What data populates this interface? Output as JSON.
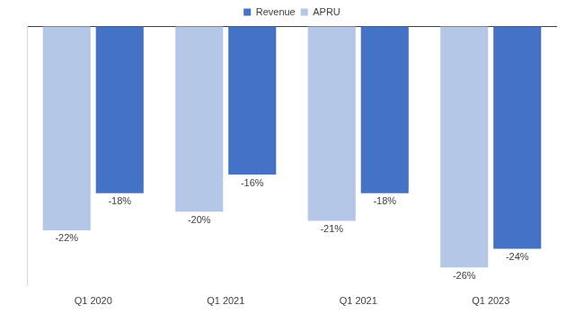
{
  "chart_data": {
    "type": "bar",
    "categories": [
      "Q1 2020",
      "Q1 2021",
      "Q1 2021",
      "Q1 2023"
    ],
    "series": [
      {
        "name": "APRU",
        "color": "#b4c7e7",
        "values": [
          -22,
          -20,
          -21,
          -26
        ],
        "value_labels": [
          "-22%",
          "-20%",
          "-21%",
          "-26%"
        ]
      },
      {
        "name": "Revenue",
        "color": "#4472c4",
        "values": [
          -18,
          -16,
          -18,
          -24
        ],
        "value_labels": [
          "-18%",
          "-16%",
          "-18%",
          "-24%"
        ]
      }
    ],
    "ylim": [
      -28,
      0
    ],
    "yticks": [
      0
    ],
    "grid": true,
    "legend": "top",
    "data_labels": true,
    "tick_labels": "x"
  }
}
